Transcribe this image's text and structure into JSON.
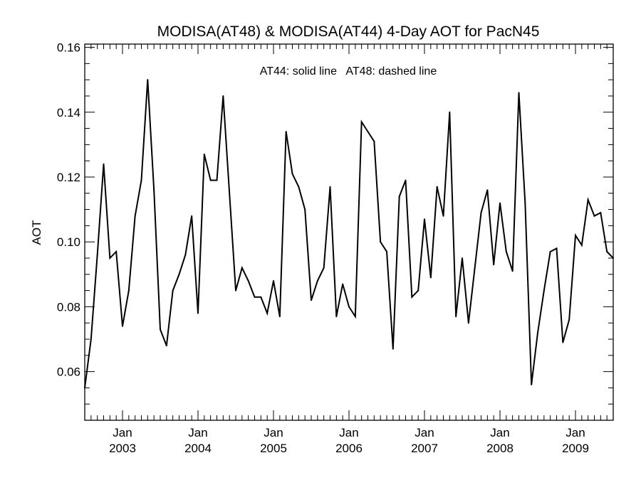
{
  "chart_data": {
    "type": "line",
    "title": "MODISA(AT48) & MODISA(AT44) 4-Day AOT for PacN45",
    "annotation": "AT44: solid line   AT48: dashed line",
    "xlabel": "",
    "ylabel": "AOT",
    "ylim": [
      0.045,
      0.161
    ],
    "xlim": [
      "2002-07",
      "2009-07"
    ],
    "x_ticks": [
      {
        "month": "Jan",
        "year": "2003"
      },
      {
        "month": "Jan",
        "year": "2004"
      },
      {
        "month": "Jan",
        "year": "2005"
      },
      {
        "month": "Jan",
        "year": "2006"
      },
      {
        "month": "Jan",
        "year": "2007"
      },
      {
        "month": "Jan",
        "year": "2008"
      },
      {
        "month": "Jan",
        "year": "2009"
      }
    ],
    "y_ticks": [
      "0.06",
      "0.08",
      "0.10",
      "0.12",
      "0.14",
      "0.16"
    ],
    "grid": false,
    "series": [
      {
        "line_style": "solid",
        "color": "#000000",
        "x": [
          "2002-07",
          "2002-08",
          "2002-09",
          "2002-10",
          "2002-11",
          "2002-12",
          "2003-01",
          "2003-02",
          "2003-03",
          "2003-04",
          "2003-05",
          "2003-06",
          "2003-07",
          "2003-08",
          "2003-09",
          "2003-10",
          "2003-11",
          "2003-12",
          "2004-01",
          "2004-02",
          "2004-03",
          "2004-04",
          "2004-05",
          "2004-06",
          "2004-07",
          "2004-08",
          "2004-09",
          "2004-10",
          "2004-11",
          "2004-12",
          "2005-01",
          "2005-02",
          "2005-03",
          "2005-04",
          "2005-05",
          "2005-06",
          "2005-07",
          "2005-08",
          "2005-09",
          "2005-10",
          "2005-11",
          "2005-12",
          "2006-01",
          "2006-02",
          "2006-03",
          "2006-04",
          "2006-05",
          "2006-06",
          "2006-07",
          "2006-08",
          "2006-09",
          "2006-10",
          "2006-11",
          "2006-12",
          "2007-01",
          "2007-02",
          "2007-03",
          "2007-04",
          "2007-05",
          "2007-06",
          "2007-07",
          "2007-08",
          "2007-09",
          "2007-10",
          "2007-11",
          "2007-12",
          "2008-01",
          "2008-02",
          "2008-03",
          "2008-04",
          "2008-05",
          "2008-06",
          "2008-07",
          "2008-08",
          "2008-09",
          "2008-10",
          "2008-11",
          "2008-12",
          "2009-01",
          "2009-02",
          "2009-03",
          "2009-04",
          "2009-05",
          "2009-06",
          "2009-07"
        ],
        "values": [
          0.055,
          0.07,
          0.096,
          0.124,
          0.095,
          0.097,
          0.074,
          0.085,
          0.108,
          0.119,
          0.15,
          0.116,
          0.073,
          0.068,
          0.085,
          0.09,
          0.096,
          0.108,
          0.078,
          0.127,
          0.119,
          0.119,
          0.145,
          0.115,
          0.085,
          0.092,
          0.088,
          0.083,
          0.083,
          0.078,
          0.088,
          0.077,
          0.134,
          0.121,
          0.117,
          0.11,
          0.082,
          0.088,
          0.092,
          0.117,
          0.077,
          0.087,
          0.08,
          0.077,
          0.137,
          0.134,
          0.131,
          0.1,
          0.097,
          0.067,
          0.114,
          0.119,
          0.083,
          0.085,
          0.107,
          0.089,
          0.117,
          0.108,
          0.14,
          0.077,
          0.095,
          0.075,
          0.092,
          0.109,
          0.116,
          0.093,
          0.112,
          0.097,
          0.091,
          0.146,
          0.112,
          0.056,
          0.072,
          0.085,
          0.097,
          0.098,
          0.069,
          0.076,
          0.102,
          0.099,
          0.113,
          0.108,
          0.109,
          0.097,
          0.095
        ]
      }
    ]
  }
}
